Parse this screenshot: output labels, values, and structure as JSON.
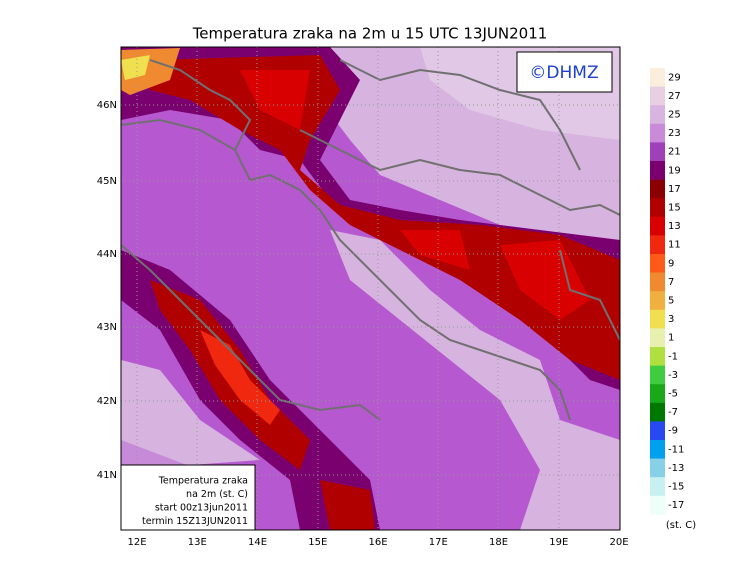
{
  "title": "Temperatura zraka na 2m u 15 UTC 13JUN2011",
  "copyright": "©DHMZ",
  "lat_labels": [
    "46N",
    "45N",
    "44N",
    "43N",
    "42N",
    "41N"
  ],
  "lon_labels": [
    "12E",
    "13E",
    "14E",
    "15E",
    "16E",
    "17E",
    "18E",
    "19E",
    "20E"
  ],
  "info_box": [
    "Temperatura zraka",
    "na 2m (st. C)",
    "start 00z13jun2011",
    "termin 15Z13JUN2011"
  ],
  "colorbar": {
    "labels": [
      29,
      27,
      25,
      23,
      21,
      19,
      17,
      15,
      13,
      11,
      9,
      7,
      5,
      3,
      1,
      -1,
      -3,
      -5,
      -7,
      -9,
      -11,
      -13,
      -15,
      -17
    ],
    "colors": [
      "#fbeedd",
      "#e8d0e2",
      "#d8b4e0",
      "#c98ad9",
      "#a040b8",
      "#7a0070",
      "#8a0000",
      "#b00000",
      "#d80000",
      "#f02810",
      "#ff5a18",
      "#f08a30",
      "#f0b040",
      "#f0e050",
      "#e8f0b0",
      "#b0e040",
      "#40cc40",
      "#18a818",
      "#007800",
      "#2848f0",
      "#00a0f0",
      "#88d0e8",
      "#c8f0f0",
      "#ecfff8"
    ],
    "unit": "(st. C)"
  }
}
